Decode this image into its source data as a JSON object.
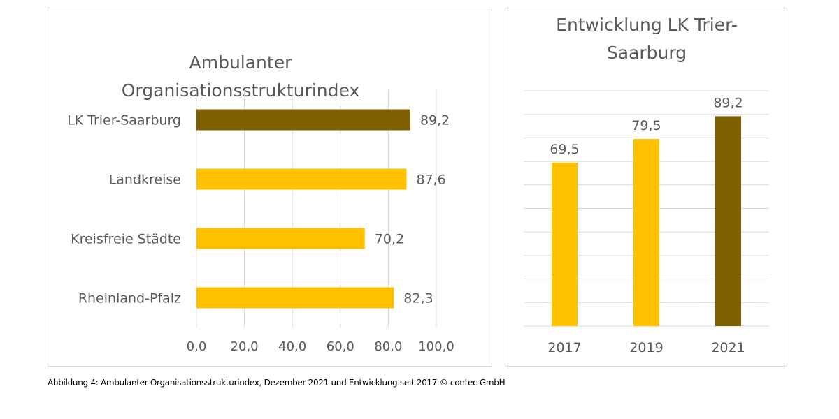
{
  "chart_data": [
    {
      "type": "bar",
      "orientation": "horizontal",
      "title": "Ambulanter Organisationsstrukturindex",
      "title_lines": [
        "Ambulanter",
        "Organisationsstrukturindex"
      ],
      "categories": [
        "LK Trier-Saarburg",
        "Landkreise",
        "Kreisfreie Städte",
        "Rheinland-Pfalz"
      ],
      "values": [
        89.2,
        87.6,
        70.2,
        82.3
      ],
      "value_labels": [
        "89,2",
        "87,6",
        "70,2",
        "82,3"
      ],
      "colors": [
        "#7f6000",
        "#ffc000",
        "#ffc000",
        "#ffc000"
      ],
      "xlim": [
        0,
        100
      ],
      "xticks": [
        0,
        20,
        40,
        60,
        80,
        100
      ],
      "xtick_labels": [
        "0,0",
        "20,0",
        "40,0",
        "60,0",
        "80,0",
        "100,0"
      ],
      "grid": "vertical",
      "xlabel": "",
      "ylabel": ""
    },
    {
      "type": "bar",
      "orientation": "vertical",
      "title": "Entwicklung LK Trier-Saarburg",
      "title_lines": [
        "Entwicklung LK Trier-",
        "Saarburg"
      ],
      "categories": [
        "2017",
        "2019",
        "2021"
      ],
      "values": [
        69.5,
        79.5,
        89.2
      ],
      "value_labels": [
        "69,5",
        "79,5",
        "89,2"
      ],
      "colors": [
        "#ffc000",
        "#ffc000",
        "#7f6000"
      ],
      "ylim": [
        0,
        100
      ],
      "gridline_step": 10,
      "grid": "horizontal",
      "yaxis_labels_visible": false,
      "xlabel": "",
      "ylabel": ""
    }
  ],
  "caption": "Abbildung 4: Ambulanter Organisationsstrukturindex, Dezember 2021 und Entwicklung seit 2017 © contec GmbH"
}
